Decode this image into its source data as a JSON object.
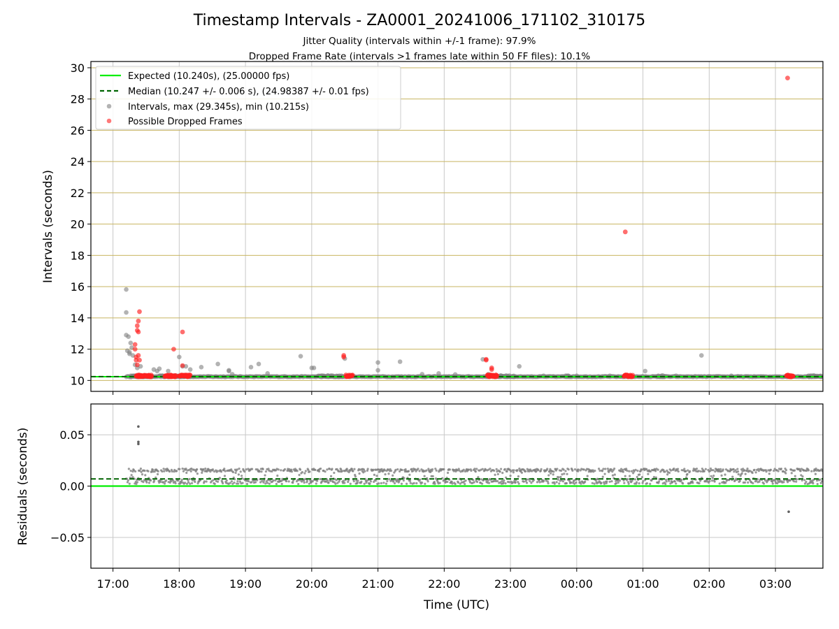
{
  "title": "Timestamp Intervals - ZA0001_20241006_171102_310175",
  "subtitle1": "Jitter Quality (intervals within +/-1 frame): 97.9%",
  "subtitle2": "Dropped Frame Rate (intervals >1 frames late within 50 FF files): 10.1%",
  "colors": {
    "expected": "#00ee00",
    "median": "#006400",
    "intervals": "#808080",
    "dropped": "#ff2020",
    "hgrid_top": "#c8b560",
    "grid": "#c8c8c8"
  },
  "chart_data": [
    {
      "type": "scatter",
      "ylabel": "Intervals (seconds)",
      "xlim": [
        "16:40",
        "03:43"
      ],
      "ylim": [
        9.3,
        30.4
      ],
      "yticks": [
        "10",
        "12",
        "14",
        "16",
        "18",
        "20",
        "22",
        "24",
        "26",
        "28",
        "30"
      ],
      "legend": {
        "placement": "top-left",
        "entries": [
          "Expected (10.240s), (25.00000 fps)",
          "Median (10.247 +/- 0.006 s), (24.98387 +/- 0.01 fps)",
          "Intervals, max (29.345s), min (10.215s)",
          "Possible Dropped Frames"
        ]
      },
      "expected": 10.24,
      "median": 10.247,
      "series": [
        {
          "x": [
            "17:12",
            "17:12",
            "17:12",
            "17:13",
            "17:14",
            "17:15",
            "17:15",
            "17:16",
            "17:17",
            "17:18",
            "17:20",
            "17:22",
            "17:25",
            "17:37",
            "17:40",
            "17:42",
            "17:50",
            "18:00",
            "18:03",
            "18:06",
            "18:10",
            "18:20",
            "18:35",
            "18:45",
            "18:45",
            "18:48",
            "19:05",
            "19:12",
            "19:20",
            "19:50",
            "20:00",
            "20:02",
            "20:30",
            "21:00",
            "21:00",
            "21:20",
            "21:40",
            "21:55",
            "22:10",
            "22:35",
            "22:40",
            "23:08",
            "23:30",
            "00:00",
            "00:30",
            "01:02",
            "01:30",
            "01:53",
            "02:20",
            "03:30"
          ],
          "y": [
            15.82,
            14.35,
            12.9,
            11.9,
            12.8,
            11.8,
            11.7,
            12.4,
            12.1,
            11.6,
            11.0,
            10.8,
            10.9,
            10.7,
            10.6,
            10.75,
            10.6,
            11.5,
            10.9,
            10.9,
            10.7,
            10.85,
            11.05,
            10.6,
            10.65,
            10.4,
            10.85,
            11.05,
            10.45,
            11.55,
            10.8,
            10.8,
            11.4,
            11.15,
            10.65,
            11.2,
            10.4,
            10.45,
            10.38,
            11.35,
            10.4,
            10.9,
            10.3,
            10.3,
            10.3,
            10.6,
            10.3,
            11.6,
            10.3,
            10.3
          ]
        },
        {
          "x": [
            "17:20",
            "17:20",
            "17:21",
            "17:21",
            "17:22",
            "17:22",
            "17:22",
            "17:23",
            "17:23",
            "17:23",
            "17:24",
            "17:24",
            "17:55",
            "18:03",
            "18:03",
            "20:29",
            "20:29",
            "22:38",
            "22:38",
            "22:43",
            "22:43",
            "00:44",
            "03:11"
          ],
          "y": [
            12.3,
            12.0,
            11.5,
            11.3,
            13.5,
            13.2,
            11.0,
            13.8,
            13.1,
            11.6,
            14.4,
            11.3,
            12.0,
            13.1,
            10.95,
            11.6,
            11.5,
            11.35,
            11.3,
            10.8,
            10.7,
            19.5,
            29.345
          ]
        }
      ],
      "dense_bands": [
        [
          "17:16",
          "17:35"
        ],
        [
          "17:42",
          "18:09"
        ],
        [
          "20:06",
          "20:28"
        ],
        [
          "22:47",
          "23:04"
        ],
        [
          "23:50",
          "23:53"
        ],
        [
          "01:13",
          "01:20"
        ],
        [
          "03:30",
          "03:42"
        ]
      ],
      "dense_dropped_clusters": [
        [
          "17:21",
          "17:35"
        ],
        [
          "17:47",
          "17:57"
        ],
        [
          "18:00",
          "18:10"
        ],
        [
          "20:31",
          "20:37"
        ],
        [
          "22:39",
          "22:48"
        ],
        [
          "00:43",
          "00:51"
        ],
        [
          "03:10",
          "03:16"
        ]
      ]
    },
    {
      "type": "scatter",
      "ylabel": "Residuals (seconds)",
      "xlabel": "Time (UTC)",
      "xlim": [
        "16:40",
        "03:43"
      ],
      "ylim": [
        -0.08,
        0.08
      ],
      "yticks": [
        "0.05",
        "0.00",
        "−0.05"
      ],
      "xticks": [
        "17:00",
        "18:00",
        "19:00",
        "20:00",
        "21:00",
        "22:00",
        "23:00",
        "00:00",
        "01:00",
        "02:00",
        "03:00"
      ],
      "expected_residual": 0.0,
      "median_residual": 0.007,
      "band_range": [
        0.002,
        0.017
      ],
      "outliers": {
        "x": [
          "17:23",
          "17:23",
          "17:23",
          "03:12"
        ],
        "y": [
          0.058,
          0.043,
          0.041,
          -0.025
        ]
      }
    }
  ]
}
